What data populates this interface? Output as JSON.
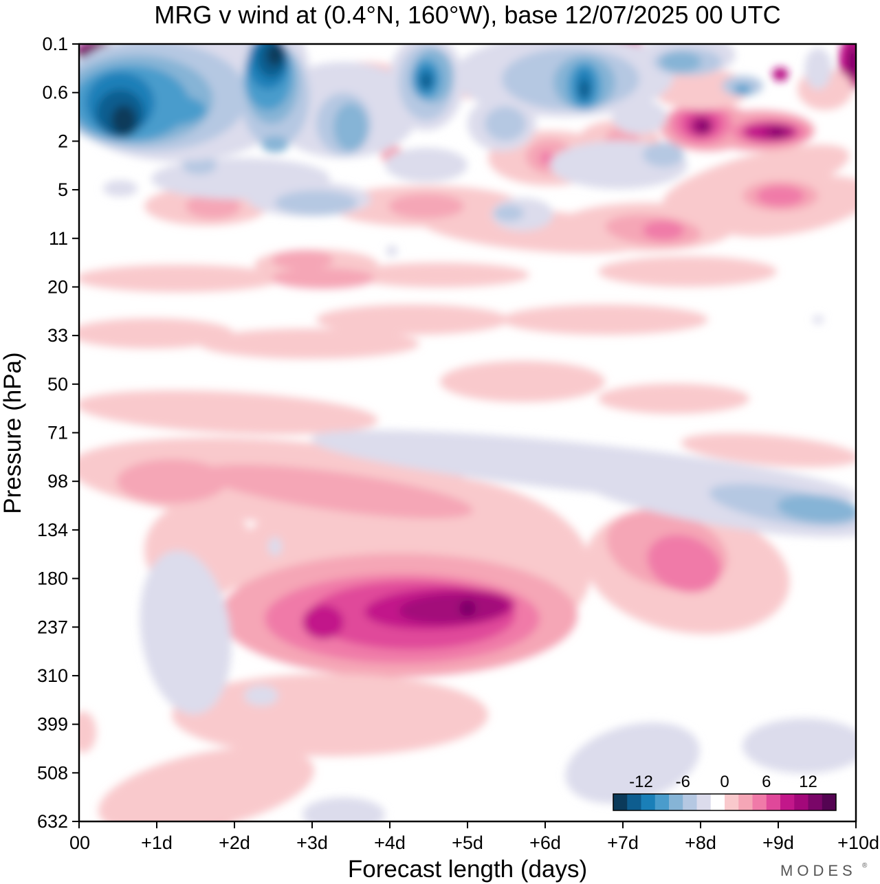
{
  "chart_data": {
    "type": "heatmap",
    "title": "MRG v wind at (0.4°N, 160°W),  base 12/07/2025  00 UTC",
    "xlabel": "Forecast length (days)",
    "ylabel": "Pressure (hPa)",
    "x_ticks": [
      "00",
      "+1d",
      "+2d",
      "+3d",
      "+4d",
      "+5d",
      "+6d",
      "+7d",
      "+8d",
      "+9d",
      "+10d"
    ],
    "y_ticks": [
      "0.1",
      "0.6",
      "2",
      "5",
      "11",
      "20",
      "33",
      "50",
      "71",
      "98",
      "134",
      "180",
      "237",
      "310",
      "399",
      "508",
      "632"
    ],
    "x_range_days": [
      0,
      10
    ],
    "colorbar": {
      "tick_labels": [
        "-12",
        "-6",
        "0",
        "6",
        "12"
      ],
      "levels": [
        -16,
        -14,
        -12,
        -10,
        -8,
        -6,
        -4,
        -2,
        2,
        4,
        6,
        8,
        10,
        12,
        14,
        16
      ],
      "colors": [
        "#0b3a5a",
        "#0e5d8f",
        "#1a7fb8",
        "#4a9ccc",
        "#86b4d6",
        "#b5c8e2",
        "#dcdcec",
        "#ffffff",
        "#f9c9cc",
        "#f5a6b6",
        "#f07aa8",
        "#e0489a",
        "#c2178a",
        "#a3087a",
        "#7a0668",
        "#540452"
      ]
    },
    "features": [
      {
        "name": "upper negative band",
        "day_range": [
          0.3,
          3.8
        ],
        "pressure_range_hPa": [
          0.1,
          3
        ],
        "max_abs_value": -16
      },
      {
        "name": "lower stratosphere negative band",
        "day_range": [
          3,
          10
        ],
        "pressure_range_hPa": [
          70,
          150
        ],
        "max_abs_value": -10
      },
      {
        "name": "upper-tropospheric positive maximum",
        "day_range": [
          2.3,
          6.5
        ],
        "pressure_range_hPa": [
          160,
          320
        ],
        "max_abs_value": 16
      },
      {
        "name": "secondary positive maximum",
        "day_range": [
          7,
          8.5
        ],
        "pressure_range_hPa": [
          130,
          200
        ],
        "max_abs_value": 10
      },
      {
        "name": "stratopause positive maxima",
        "day_range": [
          7.7,
          9.5
        ],
        "pressure_range_hPa": [
          1,
          3
        ],
        "max_abs_value": 16
      }
    ]
  },
  "branding": {
    "logo_text": "MODES"
  }
}
